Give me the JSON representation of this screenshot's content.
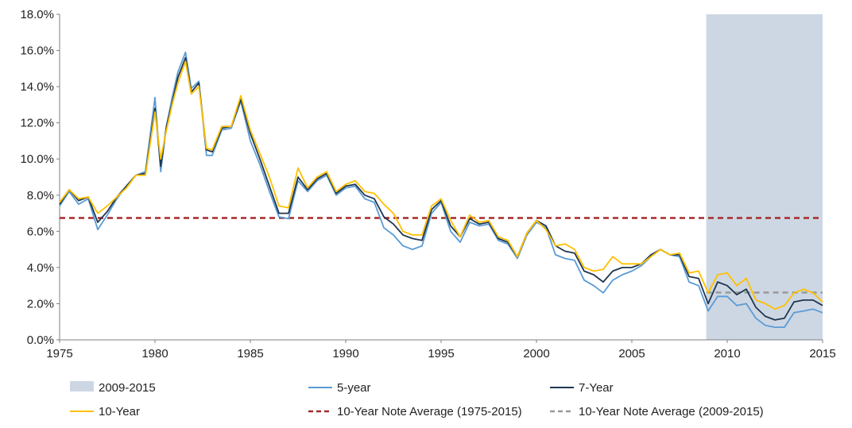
{
  "chart_data": {
    "type": "line",
    "title": "",
    "xlabel": "",
    "ylabel": "",
    "xlim": [
      1975,
      2015
    ],
    "ylim": [
      0,
      18
    ],
    "y_unit": "%",
    "grid": false,
    "x_ticks": [
      "1975",
      "1980",
      "1985",
      "1990",
      "1995",
      "2000",
      "2005",
      "2010",
      "2015"
    ],
    "y_ticks": [
      "0.0%",
      "2.0%",
      "4.0%",
      "6.0%",
      "8.0%",
      "10.0%",
      "12.0%",
      "14.0%",
      "16.0%",
      "18.0%"
    ],
    "legend_position": "bottom",
    "shaded_region": {
      "name": "2009-2015",
      "x": [
        2008.9,
        2015
      ],
      "color": "#cdd7e3"
    },
    "series": [
      {
        "name": "5-year",
        "color": "#5b9bd5",
        "x": [
          1975.0,
          1975.5,
          1976.0,
          1976.5,
          1977.0,
          1977.5,
          1978.0,
          1978.5,
          1979.0,
          1979.5,
          1980.0,
          1980.3,
          1980.6,
          1980.9,
          1981.2,
          1981.6,
          1981.9,
          1982.3,
          1982.7,
          1983.0,
          1983.5,
          1984.0,
          1984.5,
          1985.0,
          1985.5,
          1986.0,
          1986.5,
          1987.0,
          1987.5,
          1988.0,
          1988.5,
          1989.0,
          1989.5,
          1990.0,
          1990.5,
          1991.0,
          1991.5,
          1992.0,
          1992.5,
          1993.0,
          1993.5,
          1994.0,
          1994.5,
          1995.0,
          1995.5,
          1996.0,
          1996.5,
          1997.0,
          1997.5,
          1998.0,
          1998.5,
          1999.0,
          1999.5,
          2000.0,
          2000.5,
          2001.0,
          2001.5,
          2002.0,
          2002.5,
          2003.0,
          2003.5,
          2004.0,
          2004.5,
          2005.0,
          2005.5,
          2006.0,
          2006.5,
          2007.0,
          2007.5,
          2008.0,
          2008.5,
          2009.0,
          2009.5,
          2010.0,
          2010.5,
          2011.0,
          2011.5,
          2012.0,
          2012.5,
          2013.0,
          2013.5,
          2014.0,
          2014.5,
          2015.0
        ],
        "values": [
          7.4,
          8.2,
          7.5,
          7.8,
          6.1,
          6.9,
          7.8,
          8.5,
          9.1,
          9.3,
          13.4,
          9.3,
          11.8,
          13.4,
          14.8,
          15.9,
          13.9,
          14.3,
          10.2,
          10.2,
          11.6,
          11.7,
          13.2,
          11.0,
          9.7,
          8.2,
          6.8,
          6.7,
          8.8,
          8.2,
          8.8,
          9.1,
          8.0,
          8.4,
          8.5,
          7.8,
          7.6,
          6.2,
          5.8,
          5.2,
          5.0,
          5.2,
          7.0,
          7.6,
          6.0,
          5.4,
          6.5,
          6.3,
          6.4,
          5.5,
          5.3,
          4.5,
          5.8,
          6.5,
          6.2,
          4.7,
          4.5,
          4.4,
          3.3,
          3.0,
          2.6,
          3.3,
          3.6,
          3.8,
          4.1,
          4.6,
          5.0,
          4.7,
          4.6,
          3.2,
          3.0,
          1.6,
          2.4,
          2.4,
          1.9,
          2.0,
          1.2,
          0.8,
          0.7,
          0.7,
          1.5,
          1.6,
          1.7,
          1.5
        ]
      },
      {
        "name": "7-Year",
        "color": "#1f3650",
        "x": [
          1975.0,
          1975.5,
          1976.0,
          1976.5,
          1977.0,
          1977.5,
          1978.0,
          1978.5,
          1979.0,
          1979.5,
          1980.0,
          1980.3,
          1980.6,
          1980.9,
          1981.2,
          1981.6,
          1981.9,
          1982.3,
          1982.7,
          1983.0,
          1983.5,
          1984.0,
          1984.5,
          1985.0,
          1985.5,
          1986.0,
          1986.5,
          1987.0,
          1987.5,
          1988.0,
          1988.5,
          1989.0,
          1989.5,
          1990.0,
          1990.5,
          1991.0,
          1991.5,
          1992.0,
          1992.5,
          1993.0,
          1993.5,
          1994.0,
          1994.5,
          1995.0,
          1995.5,
          1996.0,
          1996.5,
          1997.0,
          1997.5,
          1998.0,
          1998.5,
          1999.0,
          1999.5,
          2000.0,
          2000.5,
          2001.0,
          2001.5,
          2002.0,
          2002.5,
          2003.0,
          2003.5,
          2004.0,
          2004.5,
          2005.0,
          2005.5,
          2006.0,
          2006.5,
          2007.0,
          2007.5,
          2008.0,
          2008.5,
          2009.0,
          2009.5,
          2010.0,
          2010.5,
          2011.0,
          2011.5,
          2012.0,
          2012.5,
          2013.0,
          2013.5,
          2014.0,
          2014.5,
          2015.0
        ],
        "values": [
          7.5,
          8.3,
          7.7,
          7.9,
          6.5,
          7.1,
          7.9,
          8.5,
          9.1,
          9.2,
          12.8,
          9.6,
          11.8,
          13.1,
          14.5,
          15.6,
          13.7,
          14.2,
          10.5,
          10.4,
          11.7,
          11.8,
          13.3,
          11.4,
          10.0,
          8.5,
          7.0,
          7.0,
          9.0,
          8.3,
          8.9,
          9.2,
          8.1,
          8.5,
          8.6,
          8.0,
          7.8,
          6.8,
          6.4,
          5.8,
          5.6,
          5.5,
          7.2,
          7.7,
          6.3,
          5.7,
          6.7,
          6.4,
          6.5,
          5.6,
          5.4,
          4.6,
          5.9,
          6.6,
          6.3,
          5.2,
          4.9,
          4.8,
          3.8,
          3.6,
          3.2,
          3.8,
          4.0,
          4.0,
          4.2,
          4.7,
          5.0,
          4.7,
          4.7,
          3.5,
          3.4,
          2.0,
          3.2,
          3.0,
          2.5,
          2.8,
          1.8,
          1.3,
          1.1,
          1.2,
          2.1,
          2.2,
          2.2,
          1.9
        ]
      },
      {
        "name": "10-Year",
        "color": "#ffc000",
        "x": [
          1975.0,
          1975.5,
          1976.0,
          1976.5,
          1977.0,
          1977.5,
          1978.0,
          1978.5,
          1979.0,
          1979.5,
          1980.0,
          1980.3,
          1980.6,
          1980.9,
          1981.2,
          1981.6,
          1981.9,
          1982.3,
          1982.7,
          1983.0,
          1983.5,
          1984.0,
          1984.5,
          1985.0,
          1985.5,
          1986.0,
          1986.5,
          1987.0,
          1987.5,
          1988.0,
          1988.5,
          1989.0,
          1989.5,
          1990.0,
          1990.5,
          1991.0,
          1991.5,
          1992.0,
          1992.5,
          1993.0,
          1993.5,
          1994.0,
          1994.5,
          1995.0,
          1995.5,
          1996.0,
          1996.5,
          1997.0,
          1997.5,
          1998.0,
          1998.5,
          1999.0,
          1999.5,
          2000.0,
          2000.5,
          2001.0,
          2001.5,
          2002.0,
          2002.5,
          2003.0,
          2003.5,
          2004.0,
          2004.5,
          2005.0,
          2005.5,
          2006.0,
          2006.5,
          2007.0,
          2007.5,
          2008.0,
          2008.5,
          2009.0,
          2009.5,
          2010.0,
          2010.5,
          2011.0,
          2011.5,
          2012.0,
          2012.5,
          2013.0,
          2013.5,
          2014.0,
          2014.5,
          2015.0
        ],
        "values": [
          7.6,
          8.3,
          7.8,
          7.9,
          7.0,
          7.4,
          7.9,
          8.4,
          9.1,
          9.1,
          12.6,
          10.0,
          11.6,
          13.0,
          14.2,
          15.4,
          13.6,
          14.0,
          10.6,
          10.5,
          11.8,
          11.8,
          13.5,
          11.6,
          10.3,
          9.0,
          7.4,
          7.3,
          9.5,
          8.4,
          9.0,
          9.3,
          8.2,
          8.6,
          8.8,
          8.2,
          8.1,
          7.5,
          7.0,
          6.0,
          5.8,
          5.8,
          7.4,
          7.8,
          6.6,
          5.7,
          6.9,
          6.5,
          6.6,
          5.7,
          5.5,
          4.6,
          5.9,
          6.6,
          6.1,
          5.2,
          5.3,
          5.0,
          4.0,
          3.8,
          3.9,
          4.6,
          4.2,
          4.2,
          4.2,
          4.6,
          5.0,
          4.7,
          4.8,
          3.7,
          3.8,
          2.6,
          3.6,
          3.7,
          3.0,
          3.4,
          2.2,
          2.0,
          1.7,
          1.9,
          2.6,
          2.8,
          2.6,
          2.1
        ]
      }
    ],
    "reference_lines": [
      {
        "name": "10-Year Note Average (1975-2015)",
        "y": 6.74,
        "x_range": [
          1975,
          2015
        ],
        "color": "#a52a2a",
        "style": "dashed"
      },
      {
        "name": "10-Year Note Average (2009-2015)",
        "y": 2.62,
        "x_range": [
          2008.9,
          2015
        ],
        "color": "#999999",
        "style": "dashed"
      }
    ],
    "legend": [
      "2009-2015",
      "5-year",
      "7-Year",
      "10-Year",
      "10-Year Note Average (1975-2015)",
      "10-Year Note Average (2009-2015)"
    ]
  }
}
